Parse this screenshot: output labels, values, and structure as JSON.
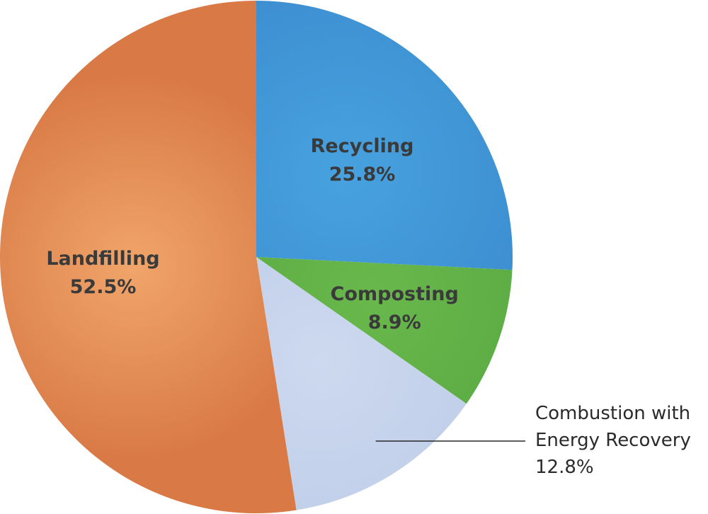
{
  "chart_data": {
    "type": "pie",
    "start_angle_deg": 0,
    "direction": "clockwise",
    "slices": [
      {
        "label": "Recycling",
        "value": 25.8,
        "value_label": "25.8%",
        "color": "#3d8fd1",
        "color_light": "#48a2df",
        "label_position": "inside"
      },
      {
        "label": "Composting",
        "value": 8.9,
        "value_label": "8.9%",
        "color": "#5aaa43",
        "color_light": "#68b84c",
        "label_position": "inside"
      },
      {
        "label": "Combustion with Energy Recovery",
        "label_lines": [
          "Combustion with",
          "Energy Recovery"
        ],
        "value": 12.8,
        "value_label": "12.8%",
        "color": "#bfcde9",
        "color_light": "#cdd9ef",
        "label_position": "outside"
      },
      {
        "label": "Landfilling",
        "value": 52.5,
        "value_label": "52.5%",
        "color": "#d97a46",
        "color_light": "#f0a56a",
        "label_position": "inside"
      }
    ]
  }
}
